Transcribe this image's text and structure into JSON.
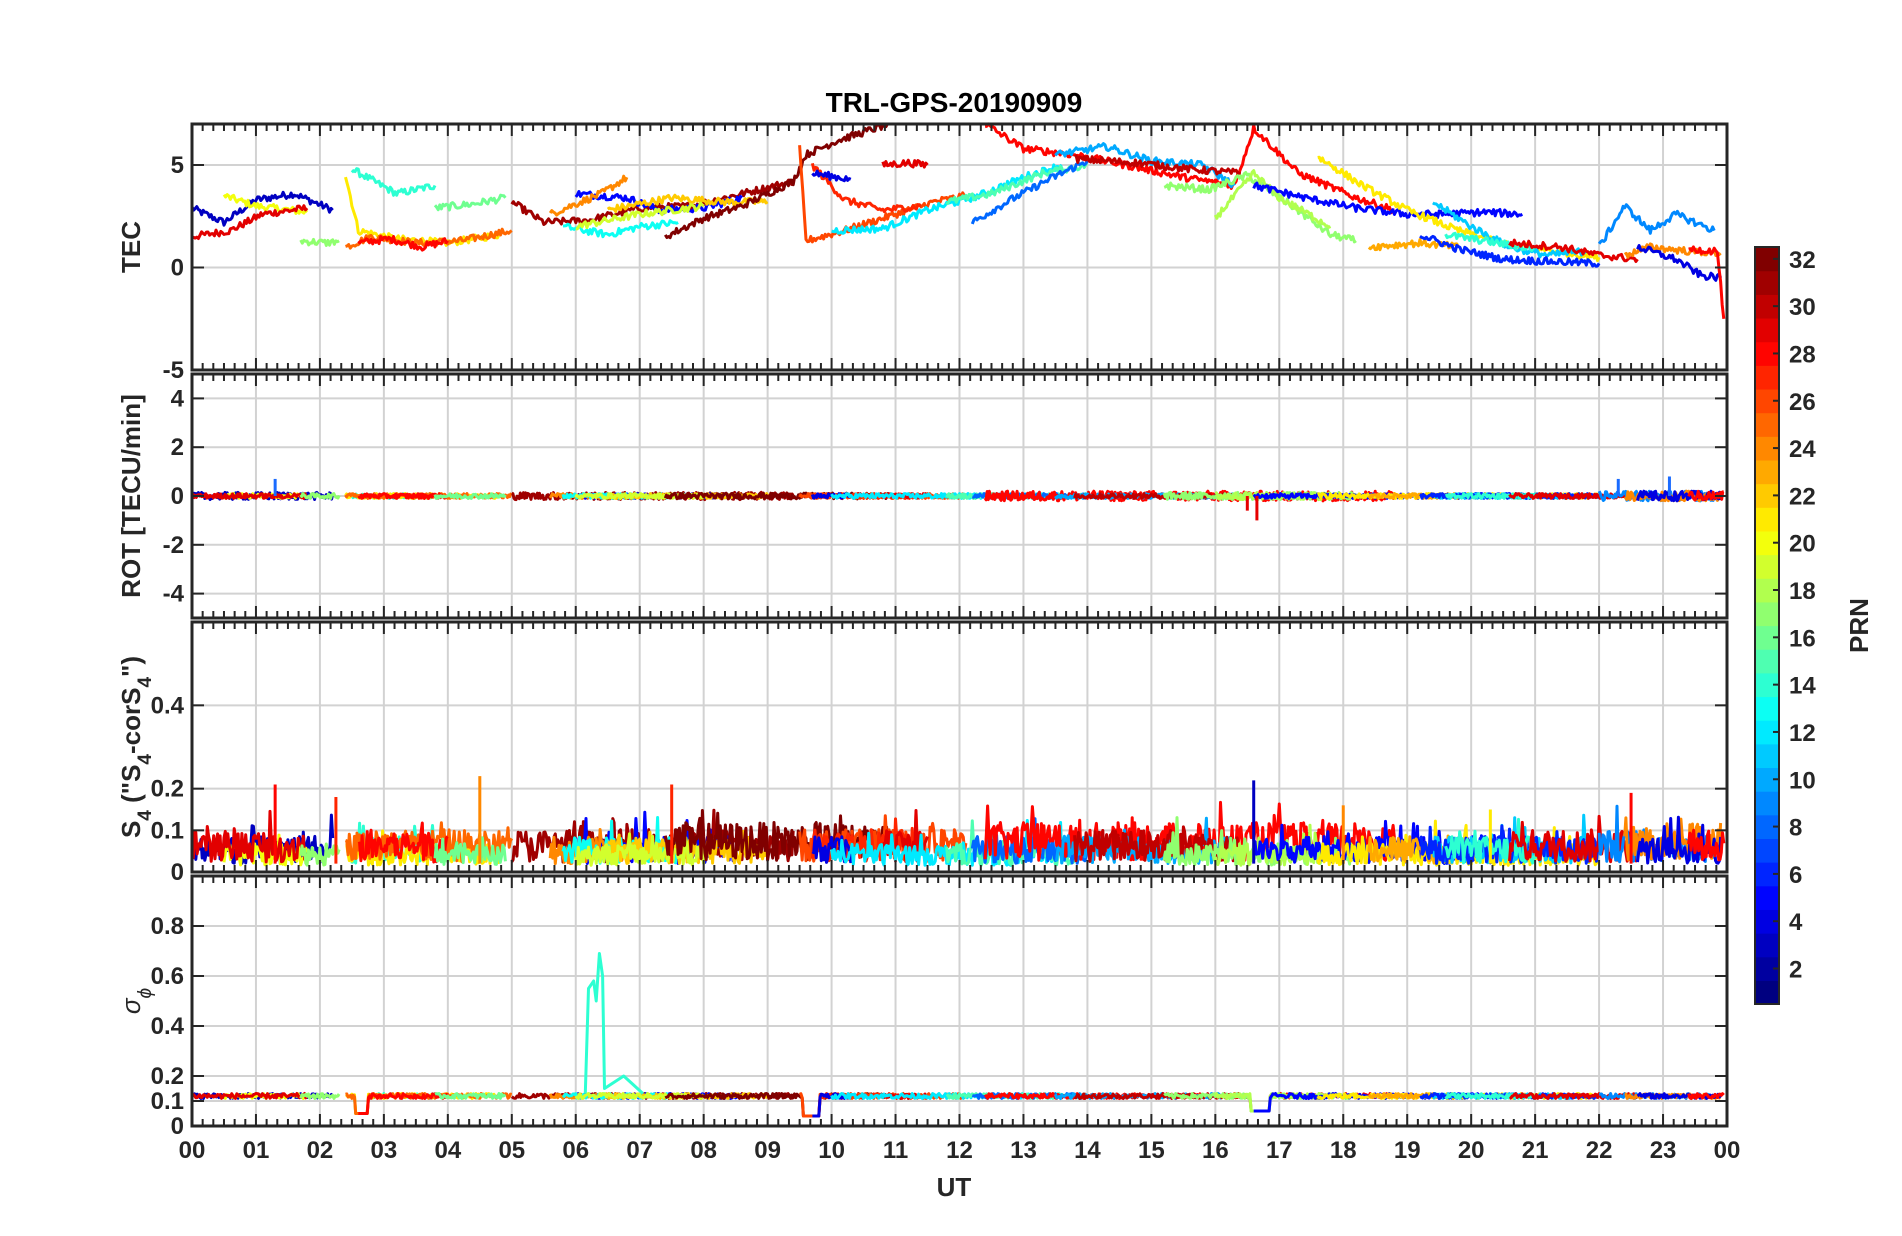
{
  "title": "TRL-GPS-20190909",
  "x_axis": {
    "label": "UT",
    "range": [
      0,
      24
    ],
    "ticks": [
      "00",
      "01",
      "02",
      "03",
      "04",
      "05",
      "06",
      "07",
      "08",
      "09",
      "10",
      "11",
      "12",
      "13",
      "14",
      "15",
      "16",
      "17",
      "18",
      "19",
      "20",
      "21",
      "22",
      "23",
      "00"
    ]
  },
  "colorbar": {
    "label": "PRN",
    "colormap": "jet",
    "range": [
      1,
      32
    ],
    "ticks": [
      "2",
      "4",
      "6",
      "8",
      "10",
      "12",
      "14",
      "16",
      "18",
      "20",
      "22",
      "24",
      "26",
      "28",
      "30",
      "32"
    ]
  },
  "panels": [
    {
      "id": "tec",
      "ylabel": "TEC",
      "ylim": [
        -5,
        7
      ],
      "ytick_values": [
        5,
        0,
        -5
      ],
      "ytick_labels": [
        "5",
        "0",
        "-5"
      ]
    },
    {
      "id": "rot",
      "ylabel": "ROT [TECU/min]",
      "ylim": [
        -5,
        5
      ],
      "ytick_values": [
        4,
        2,
        0,
        -2,
        -4
      ],
      "ytick_labels": [
        "4",
        "2",
        "0",
        "-2",
        "-4"
      ]
    },
    {
      "id": "s4",
      "ylabel_main": "S",
      "ylabel_sub1": "4",
      "ylabel_mid": " (\"S",
      "ylabel_sub2": "4",
      "ylabel_tail": "-corS",
      "ylabel_sub3": "4",
      "ylabel_end": "\")",
      "ylim": [
        0,
        0.6
      ],
      "ytick_values": [
        0.4,
        0.2,
        0.1,
        0
      ],
      "ytick_labels": [
        "0.4",
        "0.2",
        "0.1",
        "0"
      ]
    },
    {
      "id": "sigma",
      "ylabel": "σ",
      "ylabel_sub": "ϕ",
      "ylim": [
        0,
        1
      ],
      "ytick_values": [
        0.8,
        0.6,
        0.4,
        0.2,
        0.1,
        0
      ],
      "ytick_labels": [
        "0.8",
        "0.6",
        "0.4",
        "0.2",
        "0.1",
        "0"
      ]
    }
  ],
  "chart_data": {
    "type": "line",
    "title": "TRL-GPS-20190909",
    "xlabel": "UT",
    "xlim": [
      0,
      24
    ],
    "grid": true,
    "color_encoding": "PRN",
    "series": [
      {
        "prn": 3,
        "tec": [
          [
            0,
            2.9
          ],
          [
            0.5,
            2.2
          ],
          [
            1,
            3.3
          ],
          [
            1.6,
            3.6
          ],
          [
            2.2,
            2.8
          ]
        ],
        "rot_noise": 0.15,
        "s4_base": 0.05
      },
      {
        "prn": 20,
        "tec": [
          [
            0.5,
            3.5
          ],
          [
            1,
            3.0
          ],
          [
            1.8,
            2.7
          ]
        ],
        "rot_noise": 0.1,
        "s4_base": 0.04
      },
      {
        "prn": 29,
        "tec": [
          [
            0,
            1.5
          ],
          [
            0.6,
            1.8
          ],
          [
            1.1,
            2.6
          ],
          [
            1.8,
            2.9
          ]
        ],
        "rot_noise": 0.1,
        "s4_base": 0.06
      },
      {
        "prn": 14,
        "tec": [
          [
            2.5,
            4.8
          ],
          [
            3.2,
            3.6
          ],
          [
            3.8,
            4.0
          ]
        ],
        "rot_noise": 0.1,
        "s4_base": 0.05
      },
      {
        "prn": 21,
        "tec": [
          [
            2.4,
            4.5
          ],
          [
            2.6,
            1.8
          ],
          [
            3.2,
            1.4
          ],
          [
            4.0,
            1.2
          ],
          [
            4.8,
            1.6
          ]
        ],
        "rot_noise": 0.1,
        "s4_base": 0.04
      },
      {
        "prn": 25,
        "tec": [
          [
            2.4,
            1.0
          ],
          [
            2.8,
            1.5
          ],
          [
            3.5,
            1.2
          ],
          [
            4.2,
            1.3
          ],
          [
            5.0,
            1.8
          ]
        ],
        "rot_noise": 0.1,
        "s4_base": 0.06
      },
      {
        "prn": 28,
        "tec": [
          [
            2.6,
            1.2
          ],
          [
            3.1,
            1.4
          ],
          [
            3.6,
            1.0
          ],
          [
            4.0,
            1.3
          ]
        ],
        "rot_noise": 0.1,
        "s4_base": 0.06
      },
      {
        "prn": 17,
        "tec": [
          [
            1.7,
            1.3
          ],
          [
            2.1,
            1.2
          ],
          [
            2.3,
            1.3
          ]
        ],
        "rot_noise": 0.1,
        "s4_base": 0.04
      },
      {
        "prn": 16,
        "tec": [
          [
            3.8,
            2.9
          ],
          [
            4.4,
            3.1
          ],
          [
            4.9,
            3.4
          ]
        ],
        "rot_noise": 0.1,
        "s4_base": 0.04
      },
      {
        "prn": 31,
        "tec": [
          [
            5.0,
            3.2
          ],
          [
            5.5,
            2.2
          ],
          [
            6.2,
            2.3
          ],
          [
            7.0,
            2.9
          ],
          [
            7.8,
            3.0
          ],
          [
            8.6,
            3.6
          ],
          [
            9.4,
            4.2
          ]
        ],
        "rot_noise": 0.15,
        "s4_base": 0.06
      },
      {
        "prn": 5,
        "tec": [
          [
            6.0,
            3.6
          ],
          [
            6.8,
            3.4
          ],
          [
            7.3,
            2.8
          ],
          [
            8.0,
            2.9
          ],
          [
            8.6,
            3.4
          ]
        ],
        "rot_noise": 0.1,
        "s4_base": 0.05
      },
      {
        "prn": 24,
        "tec": [
          [
            5.6,
            2.6
          ],
          [
            6.4,
            3.6
          ],
          [
            6.8,
            4.4
          ]
        ],
        "rot_noise": 0.1,
        "s4_base": 0.05
      },
      {
        "prn": 13,
        "tec": [
          [
            5.8,
            2.0
          ],
          [
            6.5,
            1.6
          ],
          [
            7.0,
            2.0
          ],
          [
            7.6,
            2.2
          ]
        ],
        "rot_noise": 0.1,
        "s4_base": 0.05
      },
      {
        "prn": 22,
        "tec": [
          [
            6.5,
            2.8
          ],
          [
            7.5,
            3.4
          ],
          [
            8.3,
            3.2
          ],
          [
            9.0,
            3.2
          ]
        ],
        "rot_noise": 0.1,
        "s4_base": 0.05
      },
      {
        "prn": 19,
        "tec": [
          [
            6.0,
            2.0
          ],
          [
            7.0,
            2.6
          ],
          [
            8.0,
            3.0
          ]
        ],
        "rot_noise": 0.1,
        "s4_base": 0.04
      },
      {
        "prn": 32,
        "tec": [
          [
            7.4,
            1.5
          ],
          [
            8.0,
            2.4
          ],
          [
            8.6,
            3.0
          ],
          [
            9.4,
            4.2
          ],
          [
            9.6,
            5.5
          ],
          [
            10.1,
            6.2
          ],
          [
            10.9,
            7.0
          ]
        ],
        "rot_noise": 0.12,
        "s4_base": 0.07
      },
      {
        "prn": 26,
        "tec": [
          [
            9.5,
            5.8
          ],
          [
            9.6,
            1.3
          ],
          [
            10.2,
            1.8
          ],
          [
            11.0,
            2.6
          ],
          [
            11.6,
            3.2
          ],
          [
            12.1,
            3.5
          ]
        ],
        "rot_noise": 0.1,
        "s4_base": 0.06
      },
      {
        "prn": 27,
        "tec": [
          [
            9.7,
            5.0
          ],
          [
            10.2,
            3.3
          ],
          [
            10.8,
            2.8
          ],
          [
            11.4,
            3.0
          ]
        ],
        "rot_noise": 0.1,
        "s4_base": 0.06
      },
      {
        "prn": 4,
        "tec": [
          [
            9.7,
            4.6
          ],
          [
            10.3,
            4.3
          ]
        ],
        "rot_noise": 0.1,
        "s4_base": 0.05
      },
      {
        "prn": 29,
        "tec": [
          [
            10.8,
            5.0
          ],
          [
            11.2,
            5.1
          ],
          [
            11.5,
            5.0
          ]
        ],
        "rot_noise": 0.1,
        "s4_base": 0.06
      },
      {
        "prn": 12,
        "tec": [
          [
            10.0,
            1.8
          ],
          [
            10.8,
            1.9
          ],
          [
            11.5,
            2.8
          ],
          [
            12.3,
            3.5
          ],
          [
            13.0,
            4.4
          ],
          [
            13.6,
            5.0
          ]
        ],
        "rot_noise": 0.1,
        "s4_base": 0.04
      },
      {
        "prn": 15,
        "tec": [
          [
            11.8,
            3.2
          ],
          [
            12.5,
            3.6
          ],
          [
            13.3,
            4.6
          ],
          [
            14.0,
            5.0
          ]
        ],
        "rot_noise": 0.1,
        "s4_base": 0.04
      },
      {
        "prn": 8,
        "tec": [
          [
            12.2,
            2.2
          ],
          [
            12.8,
            3.3
          ],
          [
            13.4,
            4.3
          ],
          [
            14.0,
            5.2
          ]
        ],
        "rot_noise": 0.1,
        "s4_base": 0.05
      },
      {
        "prn": 28,
        "tec": [
          [
            12.4,
            7.0
          ],
          [
            13.0,
            5.8
          ],
          [
            13.8,
            5.5
          ],
          [
            14.6,
            5.0
          ],
          [
            15.5,
            4.4
          ],
          [
            16.3,
            4.0
          ],
          [
            16.6,
            6.8
          ],
          [
            17.3,
            4.6
          ],
          [
            18.2,
            3.4
          ],
          [
            18.8,
            2.8
          ]
        ],
        "rot_noise": 0.2,
        "s4_base": 0.07
      },
      {
        "prn": 10,
        "tec": [
          [
            13.5,
            5.5
          ],
          [
            14.3,
            5.9
          ],
          [
            15.0,
            5.2
          ],
          [
            15.8,
            5.0
          ],
          [
            16.3,
            4.0
          ]
        ],
        "rot_noise": 0.1,
        "s4_base": 0.05
      },
      {
        "prn": 30,
        "tec": [
          [
            13.8,
            5.3
          ],
          [
            14.8,
            5.1
          ],
          [
            15.6,
            4.8
          ],
          [
            16.4,
            4.6
          ]
        ],
        "rot_noise": 0.1,
        "s4_base": 0.06
      },
      {
        "prn": 17,
        "tec": [
          [
            15.2,
            4.0
          ],
          [
            15.9,
            3.8
          ],
          [
            16.5,
            4.5
          ],
          [
            17.2,
            3.0
          ],
          [
            17.8,
            1.6
          ],
          [
            18.2,
            1.3
          ]
        ],
        "rot_noise": 0.15,
        "s4_base": 0.04
      },
      {
        "prn": 18,
        "tec": [
          [
            16.0,
            2.4
          ],
          [
            16.6,
            4.6
          ],
          [
            17.0,
            3.4
          ],
          [
            17.8,
            2.0
          ]
        ],
        "rot_noise": 0.15,
        "s4_base": 0.04
      },
      {
        "prn": 5,
        "tec": [
          [
            16.6,
            4.0
          ],
          [
            17.4,
            3.4
          ],
          [
            18.2,
            2.9
          ],
          [
            19.0,
            2.6
          ],
          [
            19.6,
            2.6
          ],
          [
            20.2,
            2.7
          ],
          [
            20.8,
            2.6
          ]
        ],
        "rot_noise": 0.1,
        "s4_base": 0.05
      },
      {
        "prn": 21,
        "tec": [
          [
            17.6,
            5.4
          ],
          [
            18.3,
            4.0
          ],
          [
            19.0,
            2.8
          ],
          [
            19.8,
            1.8
          ],
          [
            20.5,
            1.2
          ],
          [
            21.3,
            0.8
          ],
          [
            22.0,
            0.5
          ]
        ],
        "rot_noise": 0.1,
        "s4_base": 0.04
      },
      {
        "prn": 23,
        "tec": [
          [
            18.4,
            1.0
          ],
          [
            19.2,
            1.2
          ],
          [
            19.8,
            1.0
          ]
        ],
        "rot_noise": 0.1,
        "s4_base": 0.05
      },
      {
        "prn": 11,
        "tec": [
          [
            19.4,
            3.2
          ],
          [
            20.0,
            2.0
          ],
          [
            20.6,
            1.0
          ],
          [
            21.2,
            0.6
          ],
          [
            21.8,
            0.8
          ]
        ],
        "rot_noise": 0.1,
        "s4_base": 0.05
      },
      {
        "prn": 6,
        "tec": [
          [
            19.2,
            1.6
          ],
          [
            19.8,
            0.9
          ],
          [
            20.5,
            0.4
          ],
          [
            21.2,
            0.3
          ],
          [
            22.0,
            0.2
          ]
        ],
        "rot_noise": 0.1,
        "s4_base": 0.05
      },
      {
        "prn": 14,
        "tec": [
          [
            19.6,
            1.6
          ],
          [
            20.4,
            1.2
          ],
          [
            21.0,
            0.9
          ]
        ],
        "rot_noise": 0.1,
        "s4_base": 0.05
      },
      {
        "prn": 29,
        "tec": [
          [
            20.6,
            1.2
          ],
          [
            21.4,
            1.0
          ],
          [
            22.0,
            0.6
          ],
          [
            22.6,
            0.4
          ]
        ],
        "rot_noise": 0.1,
        "s4_base": 0.06
      },
      {
        "prn": 9,
        "tec": [
          [
            22.0,
            1.0
          ],
          [
            22.4,
            3.0
          ],
          [
            22.8,
            1.8
          ],
          [
            23.2,
            2.6
          ],
          [
            23.8,
            1.8
          ]
        ],
        "rot_noise": 0.2,
        "s4_base": 0.06
      },
      {
        "prn": 24,
        "tec": [
          [
            22.4,
            0.6
          ],
          [
            22.8,
            1.0
          ],
          [
            23.4,
            0.8
          ],
          [
            23.9,
            0.7
          ]
        ],
        "rot_noise": 0.2,
        "s4_base": 0.07
      },
      {
        "prn": 4,
        "tec": [
          [
            22.6,
            1.0
          ],
          [
            23.2,
            0.4
          ],
          [
            23.6,
            -0.4
          ],
          [
            23.9,
            -0.5
          ]
        ],
        "rot_noise": 0.2,
        "s4_base": 0.05
      },
      {
        "prn": 28,
        "tec": [
          [
            23.4,
            0.9
          ],
          [
            23.85,
            0.8
          ],
          [
            23.95,
            -2.5
          ]
        ],
        "rot_noise": 0.2,
        "s4_base": 0.06
      }
    ],
    "sigma_phi_baseline": 0.12,
    "sigma_phi_dips": [
      [
        2.55,
        2.75,
        0.05
      ],
      [
        9.55,
        9.8,
        0.04
      ],
      [
        16.55,
        16.85,
        0.06
      ]
    ],
    "sigma_phi_spike": {
      "prn": 14,
      "x_start": 6.2,
      "x_end": 6.45,
      "peak": 0.69
    },
    "rot_spikes": [
      [
        16.5,
        -0.6
      ],
      [
        16.65,
        -1.0
      ],
      [
        1.3,
        0.7
      ],
      [
        23.1,
        0.8
      ],
      [
        22.3,
        0.7
      ]
    ],
    "s4_peaks": [
      [
        1.3,
        0.21
      ],
      [
        2.25,
        0.18
      ],
      [
        4.5,
        0.23
      ],
      [
        7.5,
        0.21
      ],
      [
        16.6,
        0.22
      ],
      [
        18.0,
        0.16
      ],
      [
        20.3,
        0.15
      ],
      [
        22.5,
        0.19
      ]
    ]
  }
}
